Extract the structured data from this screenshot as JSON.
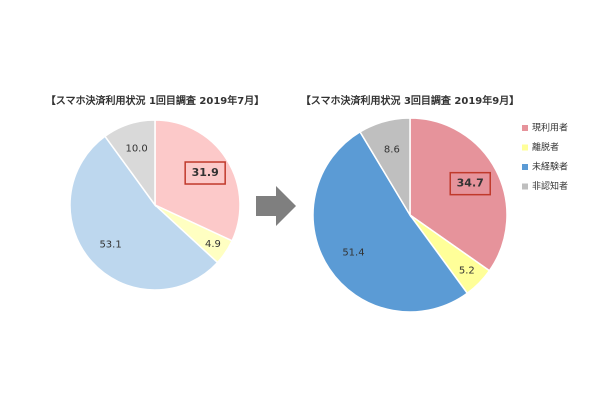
{
  "chart_data": [
    {
      "type": "pie",
      "title": "【スマホ決済利用状況 1回目調査 2019年7月】",
      "values": [
        31.9,
        4.9,
        53.1,
        10.0
      ],
      "value_labels": [
        "31.9",
        "4.9",
        "53.1",
        "10.0"
      ],
      "colors": [
        "#fcc9c9",
        "#ffffc2",
        "#bdd7ee",
        "#d9d9d9"
      ],
      "highlight_index": 0
    },
    {
      "type": "pie",
      "title": "【スマホ決済利用状況 3回目調査 2019年9月】",
      "categories": [
        "現利用者",
        "離脱者",
        "未経験者",
        "非認知者"
      ],
      "values": [
        34.7,
        5.2,
        51.4,
        8.6
      ],
      "colors": [
        "#e6939b",
        "#ffff99",
        "#5b9bd5",
        "#bfbfbf"
      ],
      "highlight_index": 0,
      "legend": "right"
    }
  ]
}
